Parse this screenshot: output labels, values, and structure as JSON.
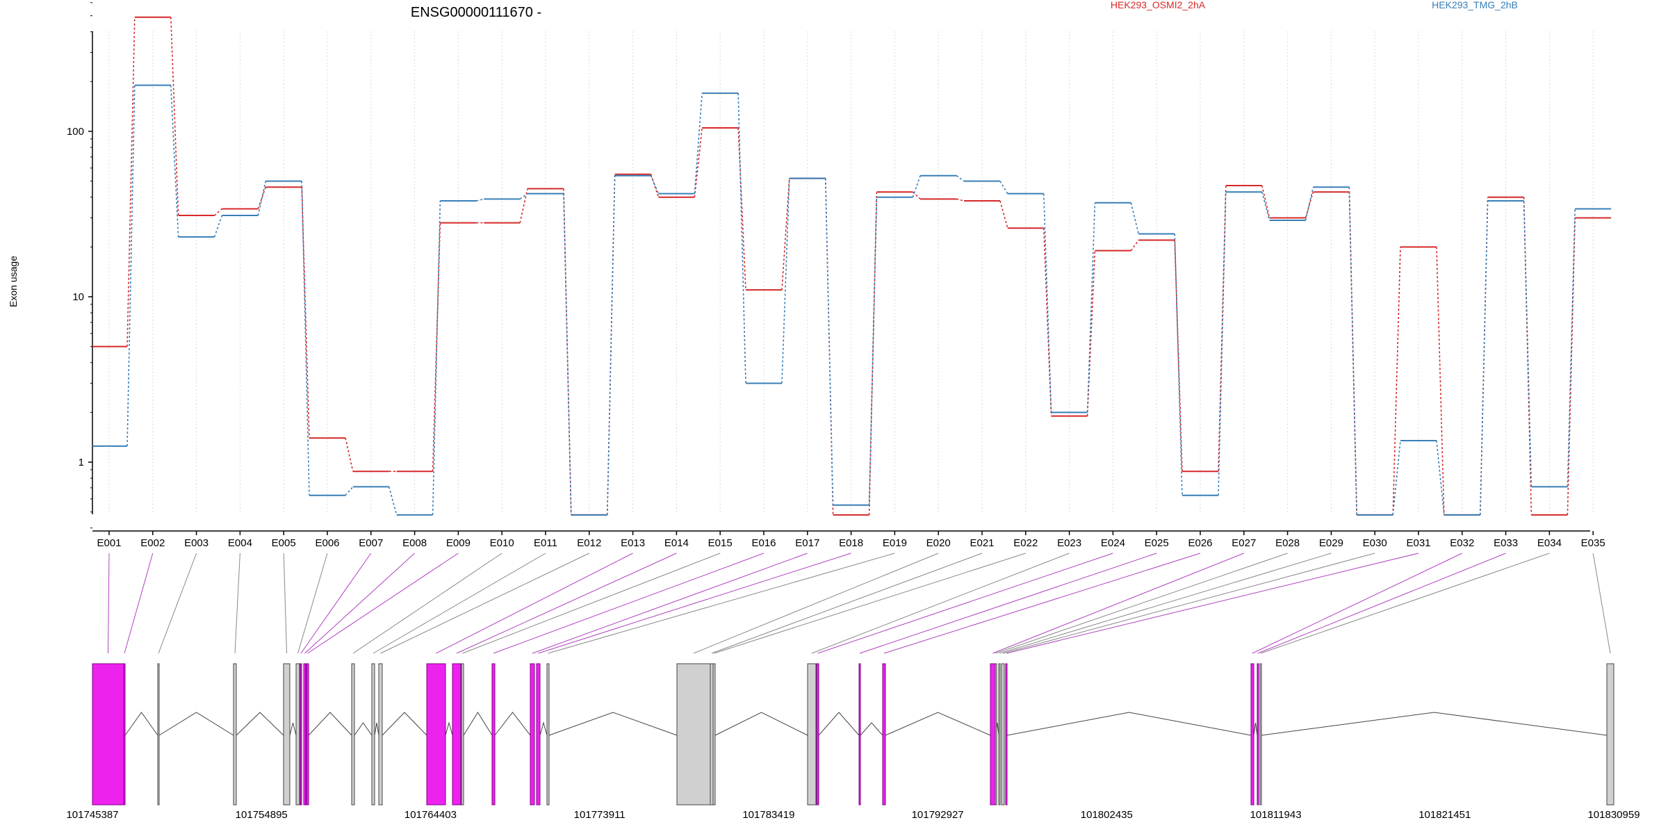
{
  "chart_data": {
    "type": "line",
    "title": "ENSG00000111670 -",
    "xlabel": "",
    "ylabel": "Exon usage",
    "yscale": "log",
    "ylim": [
      0.4,
      650
    ],
    "ytick_values": [
      1,
      10,
      100
    ],
    "ytick_labels": [
      "1",
      "10",
      "100"
    ],
    "grid": "vertical dotted",
    "legend_position": "top",
    "categories": [
      "E001",
      "E002",
      "E003",
      "E004",
      "E005",
      "E006",
      "E007",
      "E008",
      "E009",
      "E010",
      "E011",
      "E012",
      "E013",
      "E014",
      "E015",
      "E016",
      "E017",
      "E018",
      "E019",
      "E020",
      "E021",
      "E022",
      "E023",
      "E024",
      "E025",
      "E026",
      "E027",
      "E028",
      "E029",
      "E030",
      "E031",
      "E032",
      "E033",
      "E034",
      "E035"
    ],
    "series": [
      {
        "name": "HEK293_OSMI2_2hA",
        "color": "#d62728",
        "values": [
          5.0,
          490,
          31,
          34,
          46,
          1.4,
          0.88,
          0.88,
          28,
          28,
          45,
          0.48,
          55,
          40,
          105,
          11,
          52,
          0.48,
          43,
          39,
          38,
          26,
          1.9,
          19,
          22,
          0.88,
          47,
          30,
          43,
          0.48,
          20,
          0.48,
          40,
          0.48,
          30
        ]
      },
      {
        "name": "HEK293_TMG_2hB",
        "color": "#377eb8",
        "values": [
          1.25,
          190,
          23,
          31,
          50,
          0.63,
          0.71,
          0.48,
          38,
          39,
          42,
          0.48,
          54,
          42,
          170,
          3.0,
          52,
          0.55,
          40,
          54,
          50,
          42,
          2.0,
          37,
          24,
          0.63,
          43,
          29,
          46,
          0.48,
          1.35,
          0.48,
          38,
          0.71,
          34
        ]
      }
    ]
  },
  "gene_model": {
    "coordinate_labels": [
      "101745387",
      "101754895",
      "101764403",
      "101773911",
      "101783419",
      "101792927",
      "101802435",
      "101811943",
      "101821451",
      "101830959"
    ],
    "highlight_color": "#ee22ee",
    "normal_exon_color": "#d0d0d0",
    "significant_exons": [
      "E001",
      "E002",
      "E007",
      "E008",
      "E009",
      "E013",
      "E014",
      "E016",
      "E017",
      "E018",
      "E024",
      "E025",
      "E026",
      "E027",
      "E031",
      "E032",
      "E033"
    ]
  }
}
